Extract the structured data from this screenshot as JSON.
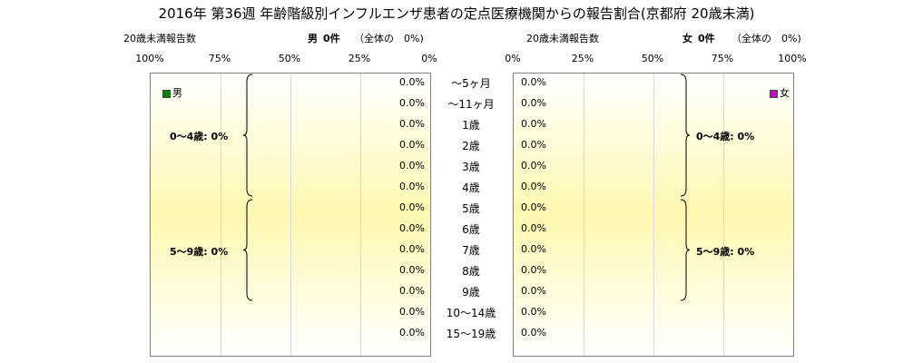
{
  "title": "2016年 第36週 年齢階級別インフルエンザ患者の定点医療機関からの報告割合(京都府 20歳未満)",
  "left_header": {
    "left_label": "20歳未満報告数",
    "sex": "男",
    "count": "0件",
    "total_label": "（全体の　0%)"
  },
  "right_header": {
    "left_label": "20歳未満報告数",
    "sex": "女",
    "count": "0件",
    "total_label": "（全体の　0%)"
  },
  "colors": {
    "male": "#008000",
    "female": "#cc00cc"
  },
  "chart_data": [
    {
      "type": "bar",
      "orientation": "horizontal",
      "direction": "right-to-left",
      "series": [
        {
          "name": "男",
          "values": [
            0,
            0,
            0,
            0,
            0,
            0,
            0,
            0,
            0,
            0,
            0,
            0,
            0
          ]
        }
      ],
      "categories": [
        "〜5ヶ月",
        "〜11ヶ月",
        "1歳",
        "2歳",
        "3歳",
        "4歳",
        "5歳",
        "6歳",
        "7歳",
        "8歳",
        "9歳",
        "10〜14歳",
        "15〜19歳"
      ],
      "value_labels": [
        "0.0%",
        "0.0%",
        "0.0%",
        "0.0%",
        "0.0%",
        "0.0%",
        "0.0%",
        "0.0%",
        "0.0%",
        "0.0%",
        "0.0%",
        "0.0%",
        "0.0%"
      ],
      "x_ticks": [
        "100%",
        "75%",
        "50%",
        "25%",
        "0%"
      ],
      "xlim": [
        100,
        0
      ],
      "groups": [
        {
          "label": "0〜4歳: 0%",
          "from": 0,
          "to": 5
        },
        {
          "label": "5〜9歳: 0%",
          "from": 6,
          "to": 10
        }
      ],
      "legend": "top-left",
      "grid": true
    },
    {
      "type": "bar",
      "orientation": "horizontal",
      "direction": "left-to-right",
      "series": [
        {
          "name": "女",
          "values": [
            0,
            0,
            0,
            0,
            0,
            0,
            0,
            0,
            0,
            0,
            0,
            0,
            0
          ]
        }
      ],
      "categories": [
        "〜5ヶ月",
        "〜11ヶ月",
        "1歳",
        "2歳",
        "3歳",
        "4歳",
        "5歳",
        "6歳",
        "7歳",
        "8歳",
        "9歳",
        "10〜14歳",
        "15〜19歳"
      ],
      "value_labels": [
        "0.0%",
        "0.0%",
        "0.0%",
        "0.0%",
        "0.0%",
        "0.0%",
        "0.0%",
        "0.0%",
        "0.0%",
        "0.0%",
        "0.0%",
        "0.0%",
        "0.0%"
      ],
      "x_ticks": [
        "0%",
        "25%",
        "50%",
        "75%",
        "100%"
      ],
      "xlim": [
        0,
        100
      ],
      "groups": [
        {
          "label": "0〜4歳: 0%",
          "from": 0,
          "to": 5
        },
        {
          "label": "5〜9歳: 0%",
          "from": 6,
          "to": 10
        }
      ],
      "legend": "top-right",
      "grid": true
    }
  ]
}
